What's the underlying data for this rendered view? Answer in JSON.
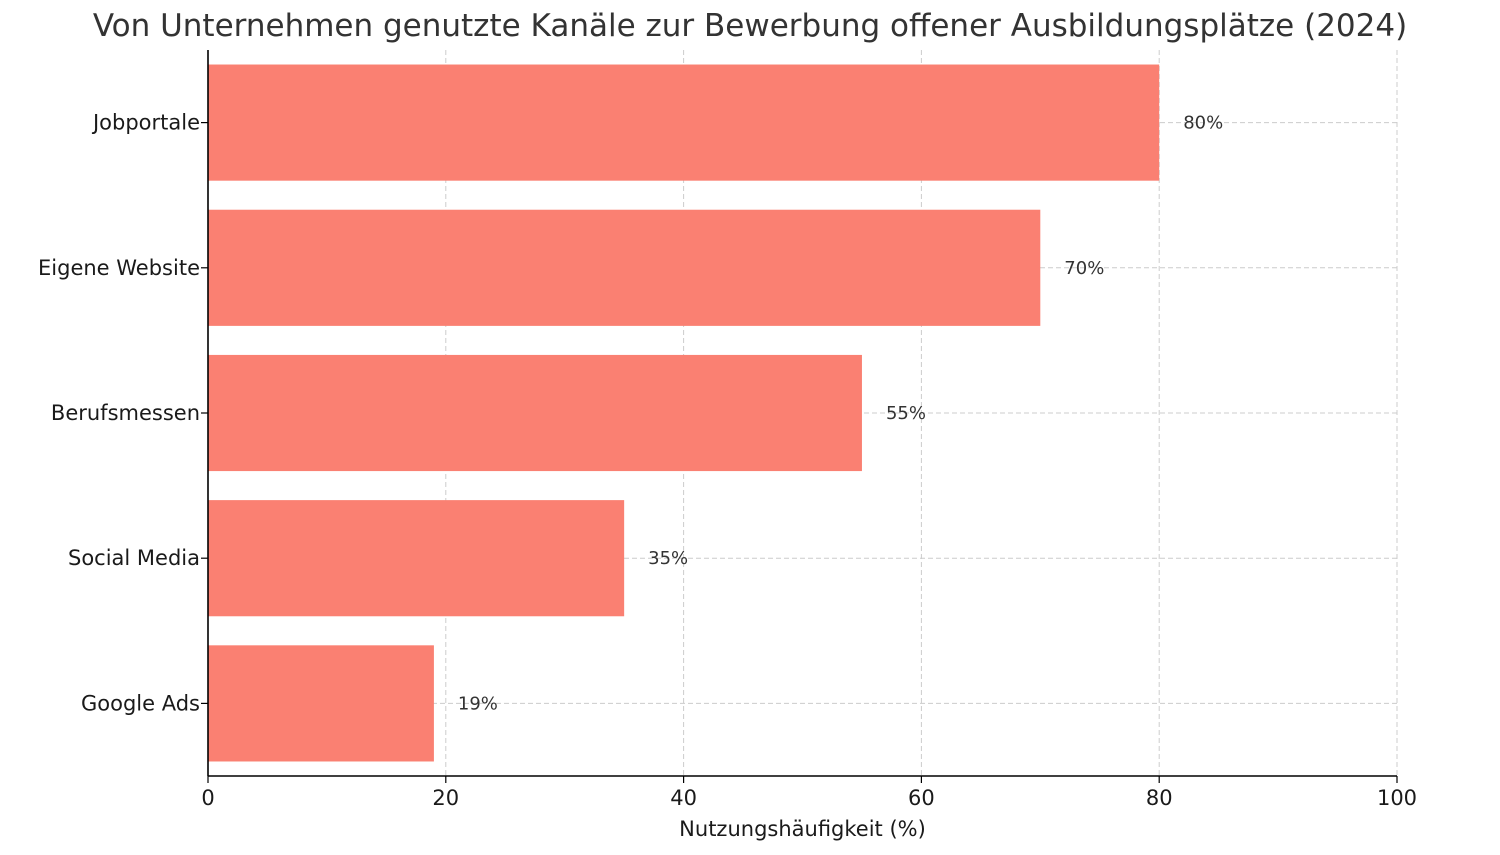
{
  "chart_data": {
    "type": "bar",
    "orientation": "horizontal",
    "title": "Von Unternehmen genutzte Kanäle zur Bewerbung offener Ausbildungsplätze (2024)",
    "xlabel": "Nutzungshäufigkeit (%)",
    "ylabel": "",
    "categories": [
      "Jobportale",
      "Eigene Website",
      "Berufsmessen",
      "Social Media",
      "Google Ads"
    ],
    "values": [
      80,
      70,
      55,
      35,
      19
    ],
    "value_labels": [
      "80%",
      "70%",
      "55%",
      "35%",
      "19%"
    ],
    "xlim": [
      0,
      100
    ],
    "xticks": [
      0,
      20,
      40,
      60,
      80,
      100
    ],
    "xtick_labels": [
      "0",
      "20",
      "40",
      "60",
      "80",
      "100"
    ],
    "grid": true,
    "bar_color": "#FA8072",
    "grid_color": "#cccccc",
    "axis_color": "#000000"
  }
}
